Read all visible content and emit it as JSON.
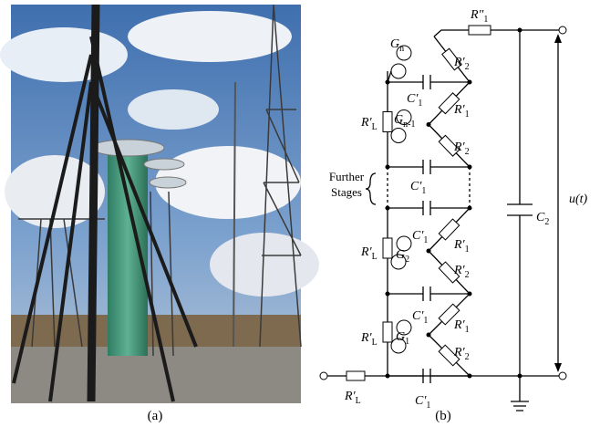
{
  "photo": {
    "caption": "(a)"
  },
  "circuit": {
    "caption": "(b)",
    "further_stages": [
      "Further",
      "Stages"
    ],
    "labels": [
      {
        "main": "G",
        "sub": "n"
      },
      {
        "main": "R″",
        "sub": "1"
      },
      {
        "main": "R′",
        "sub": "2"
      },
      {
        "main": "C′",
        "sub": "1"
      },
      {
        "main": "R′",
        "sub": "L"
      },
      {
        "main": "G",
        "sub": "n-1"
      },
      {
        "main": "R′",
        "sub": "1"
      },
      {
        "main": "R′",
        "sub": "2"
      },
      {
        "main": "C′",
        "sub": "1"
      },
      {
        "main": "C′",
        "sub": "1"
      },
      {
        "main": "R′",
        "sub": "1"
      },
      {
        "main": "R′",
        "sub": "L"
      },
      {
        "main": "G",
        "sub": "2"
      },
      {
        "main": "R′",
        "sub": "2"
      },
      {
        "main": "C′",
        "sub": "1"
      },
      {
        "main": "R′",
        "sub": "1"
      },
      {
        "main": "R′",
        "sub": "L"
      },
      {
        "main": "G",
        "sub": "1"
      },
      {
        "main": "R′",
        "sub": "2"
      },
      {
        "main": "R′",
        "sub": "L"
      },
      {
        "main": "C′",
        "sub": "1"
      },
      {
        "main": "C",
        "sub": "2"
      },
      {
        "main": "u(t)"
      }
    ]
  }
}
